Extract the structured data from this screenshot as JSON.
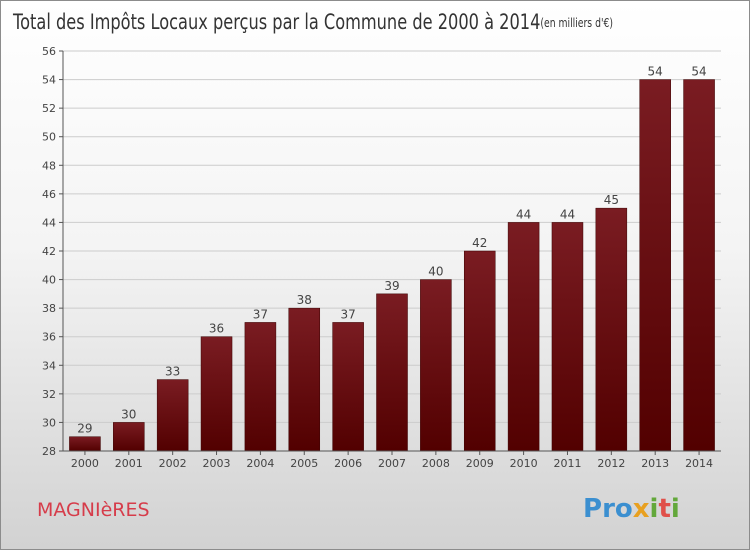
{
  "chart_data": {
    "type": "bar",
    "title": "Total des Impôts Locaux perçus par la Commune de 2000 à 2014",
    "subtitle": "(en milliers d'€)",
    "categories": [
      "2000",
      "2001",
      "2002",
      "2003",
      "2004",
      "2005",
      "2006",
      "2007",
      "2008",
      "2009",
      "2010",
      "2011",
      "2012",
      "2013",
      "2014"
    ],
    "values": [
      29,
      30,
      33,
      36,
      37,
      38,
      37,
      39,
      40,
      42,
      44,
      44,
      45,
      54,
      54
    ],
    "ylim": [
      28,
      56
    ],
    "yticks": [
      28,
      30,
      32,
      34,
      36,
      38,
      40,
      42,
      44,
      46,
      48,
      50,
      52,
      54,
      56
    ],
    "xlabel": "",
    "ylabel": "",
    "grid": true,
    "bar_color": "#7a1c22",
    "bar_color_dark": "#520000"
  },
  "footer": {
    "commune": "MAGNIèRES",
    "commune_color": "#d63c4a",
    "brand": {
      "letters": [
        {
          "ch": "P",
          "color": "#3b8fd0"
        },
        {
          "ch": "r",
          "color": "#3b8fd0"
        },
        {
          "ch": "o",
          "color": "#3b8fd0"
        },
        {
          "ch": "x",
          "color": "#e8a020"
        },
        {
          "ch": "i",
          "color": "#63a83b"
        },
        {
          "ch": "t",
          "color": "#e0504a"
        },
        {
          "ch": "i",
          "color": "#63a83b"
        }
      ]
    }
  }
}
